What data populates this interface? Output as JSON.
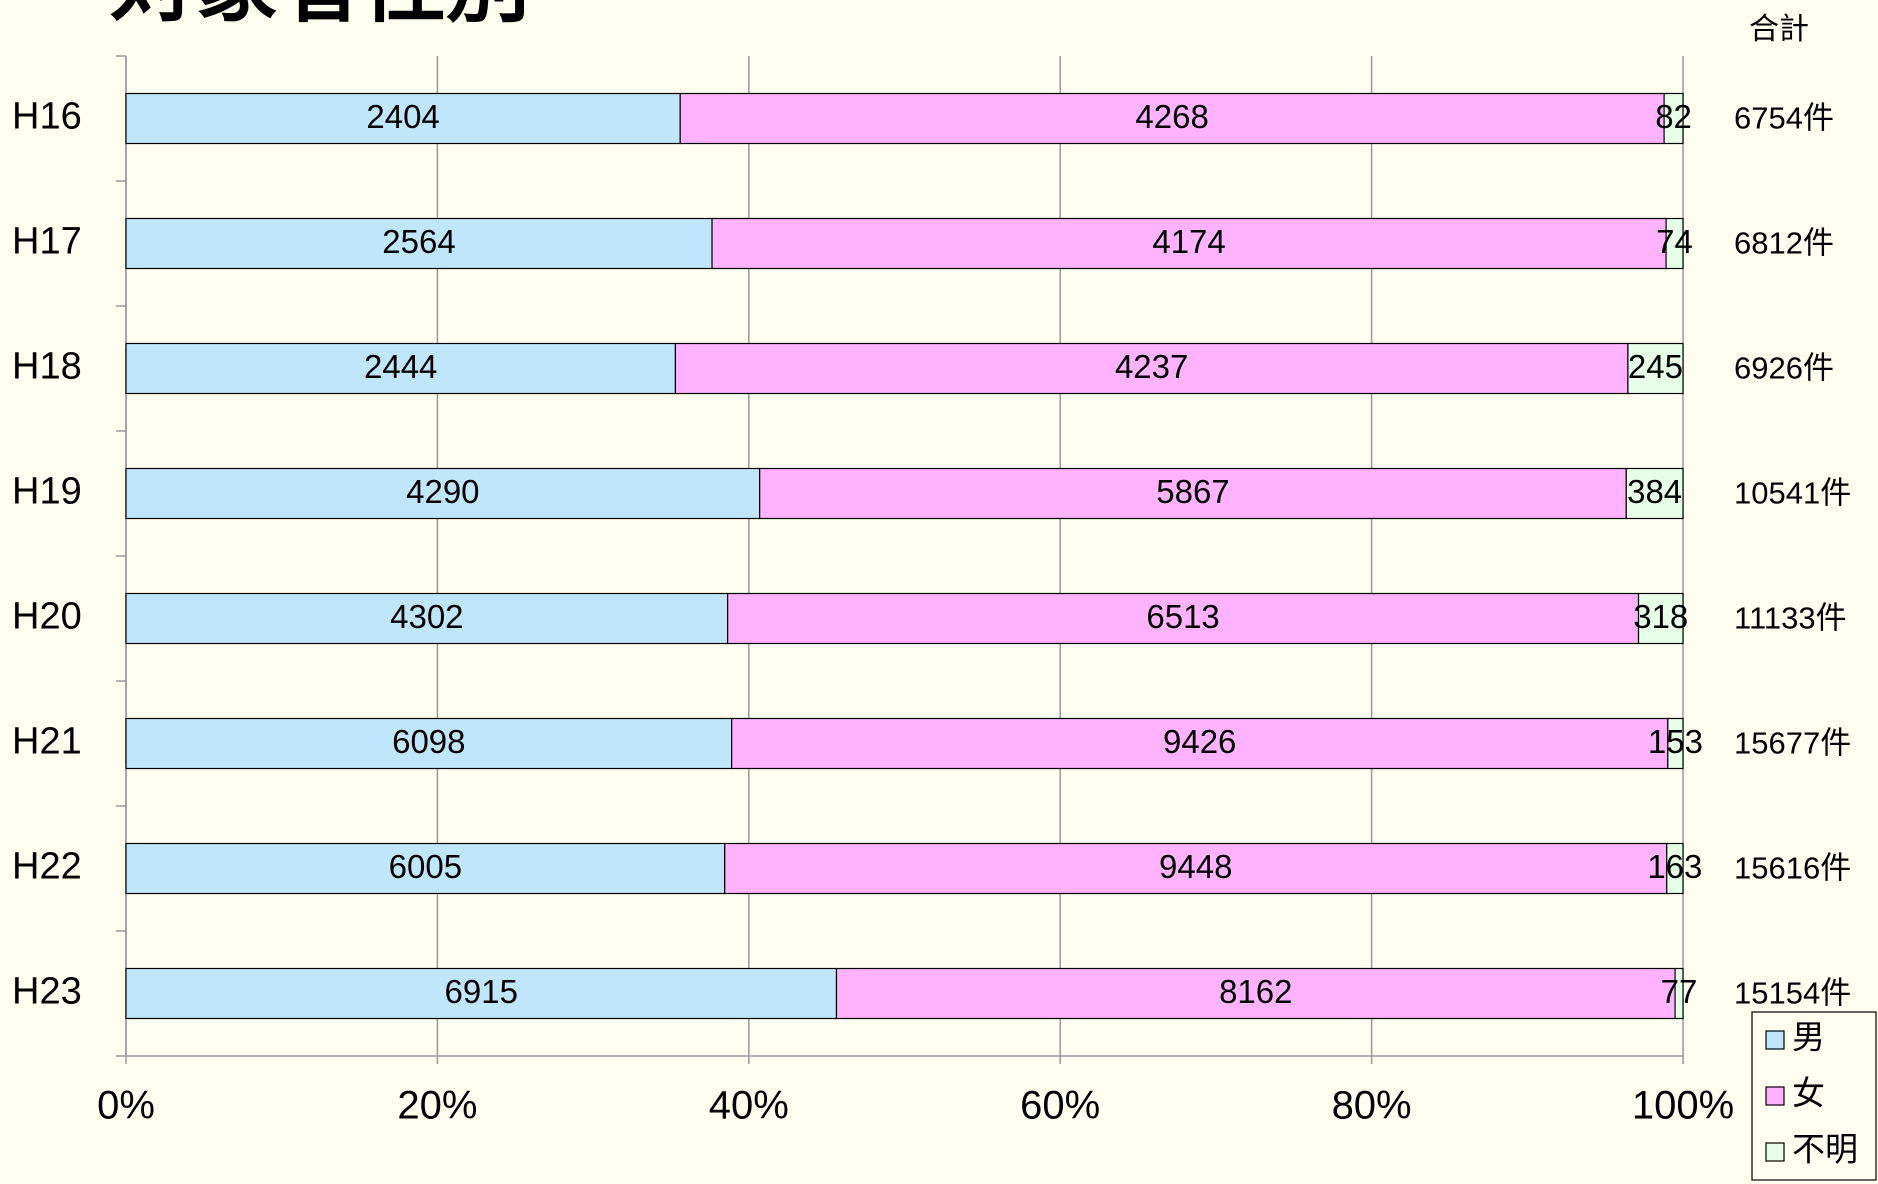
{
  "chart_data": {
    "type": "stacked_bar_100",
    "title": "対象者性別",
    "categories": [
      "H16",
      "H17",
      "H18",
      "H19",
      "H20",
      "H21",
      "H22",
      "H23"
    ],
    "series": [
      {
        "name": "男",
        "color": "#bfe6fb",
        "values": [
          2404,
          2564,
          2444,
          4290,
          4302,
          6098,
          6005,
          6915
        ]
      },
      {
        "name": "女",
        "color": "#ffb3ff",
        "values": [
          4268,
          4174,
          4237,
          5867,
          6513,
          9426,
          9448,
          8162
        ]
      },
      {
        "name": "不明",
        "color": "#e6ffe6",
        "values": [
          82,
          74,
          245,
          384,
          318,
          153,
          163,
          77
        ]
      }
    ],
    "totals_header": "合計",
    "totals": [
      6754,
      6812,
      6926,
      10541,
      11133,
      15677,
      15616,
      15154
    ],
    "total_labels": [
      "6754件",
      "6812件",
      "6926件",
      "10541件",
      "11133件",
      "15677件",
      "15616件",
      "15154件"
    ],
    "xlim": [
      0,
      100
    ],
    "xticks": [
      {
        "value": 0,
        "label": "0%"
      },
      {
        "value": 20,
        "label": "20%"
      },
      {
        "value": 40,
        "label": "40%"
      },
      {
        "value": 60,
        "label": "60%"
      },
      {
        "value": 80,
        "label": "80%"
      },
      {
        "value": 100,
        "label": "100%"
      }
    ],
    "grid": true,
    "legend": "bottom-right"
  }
}
